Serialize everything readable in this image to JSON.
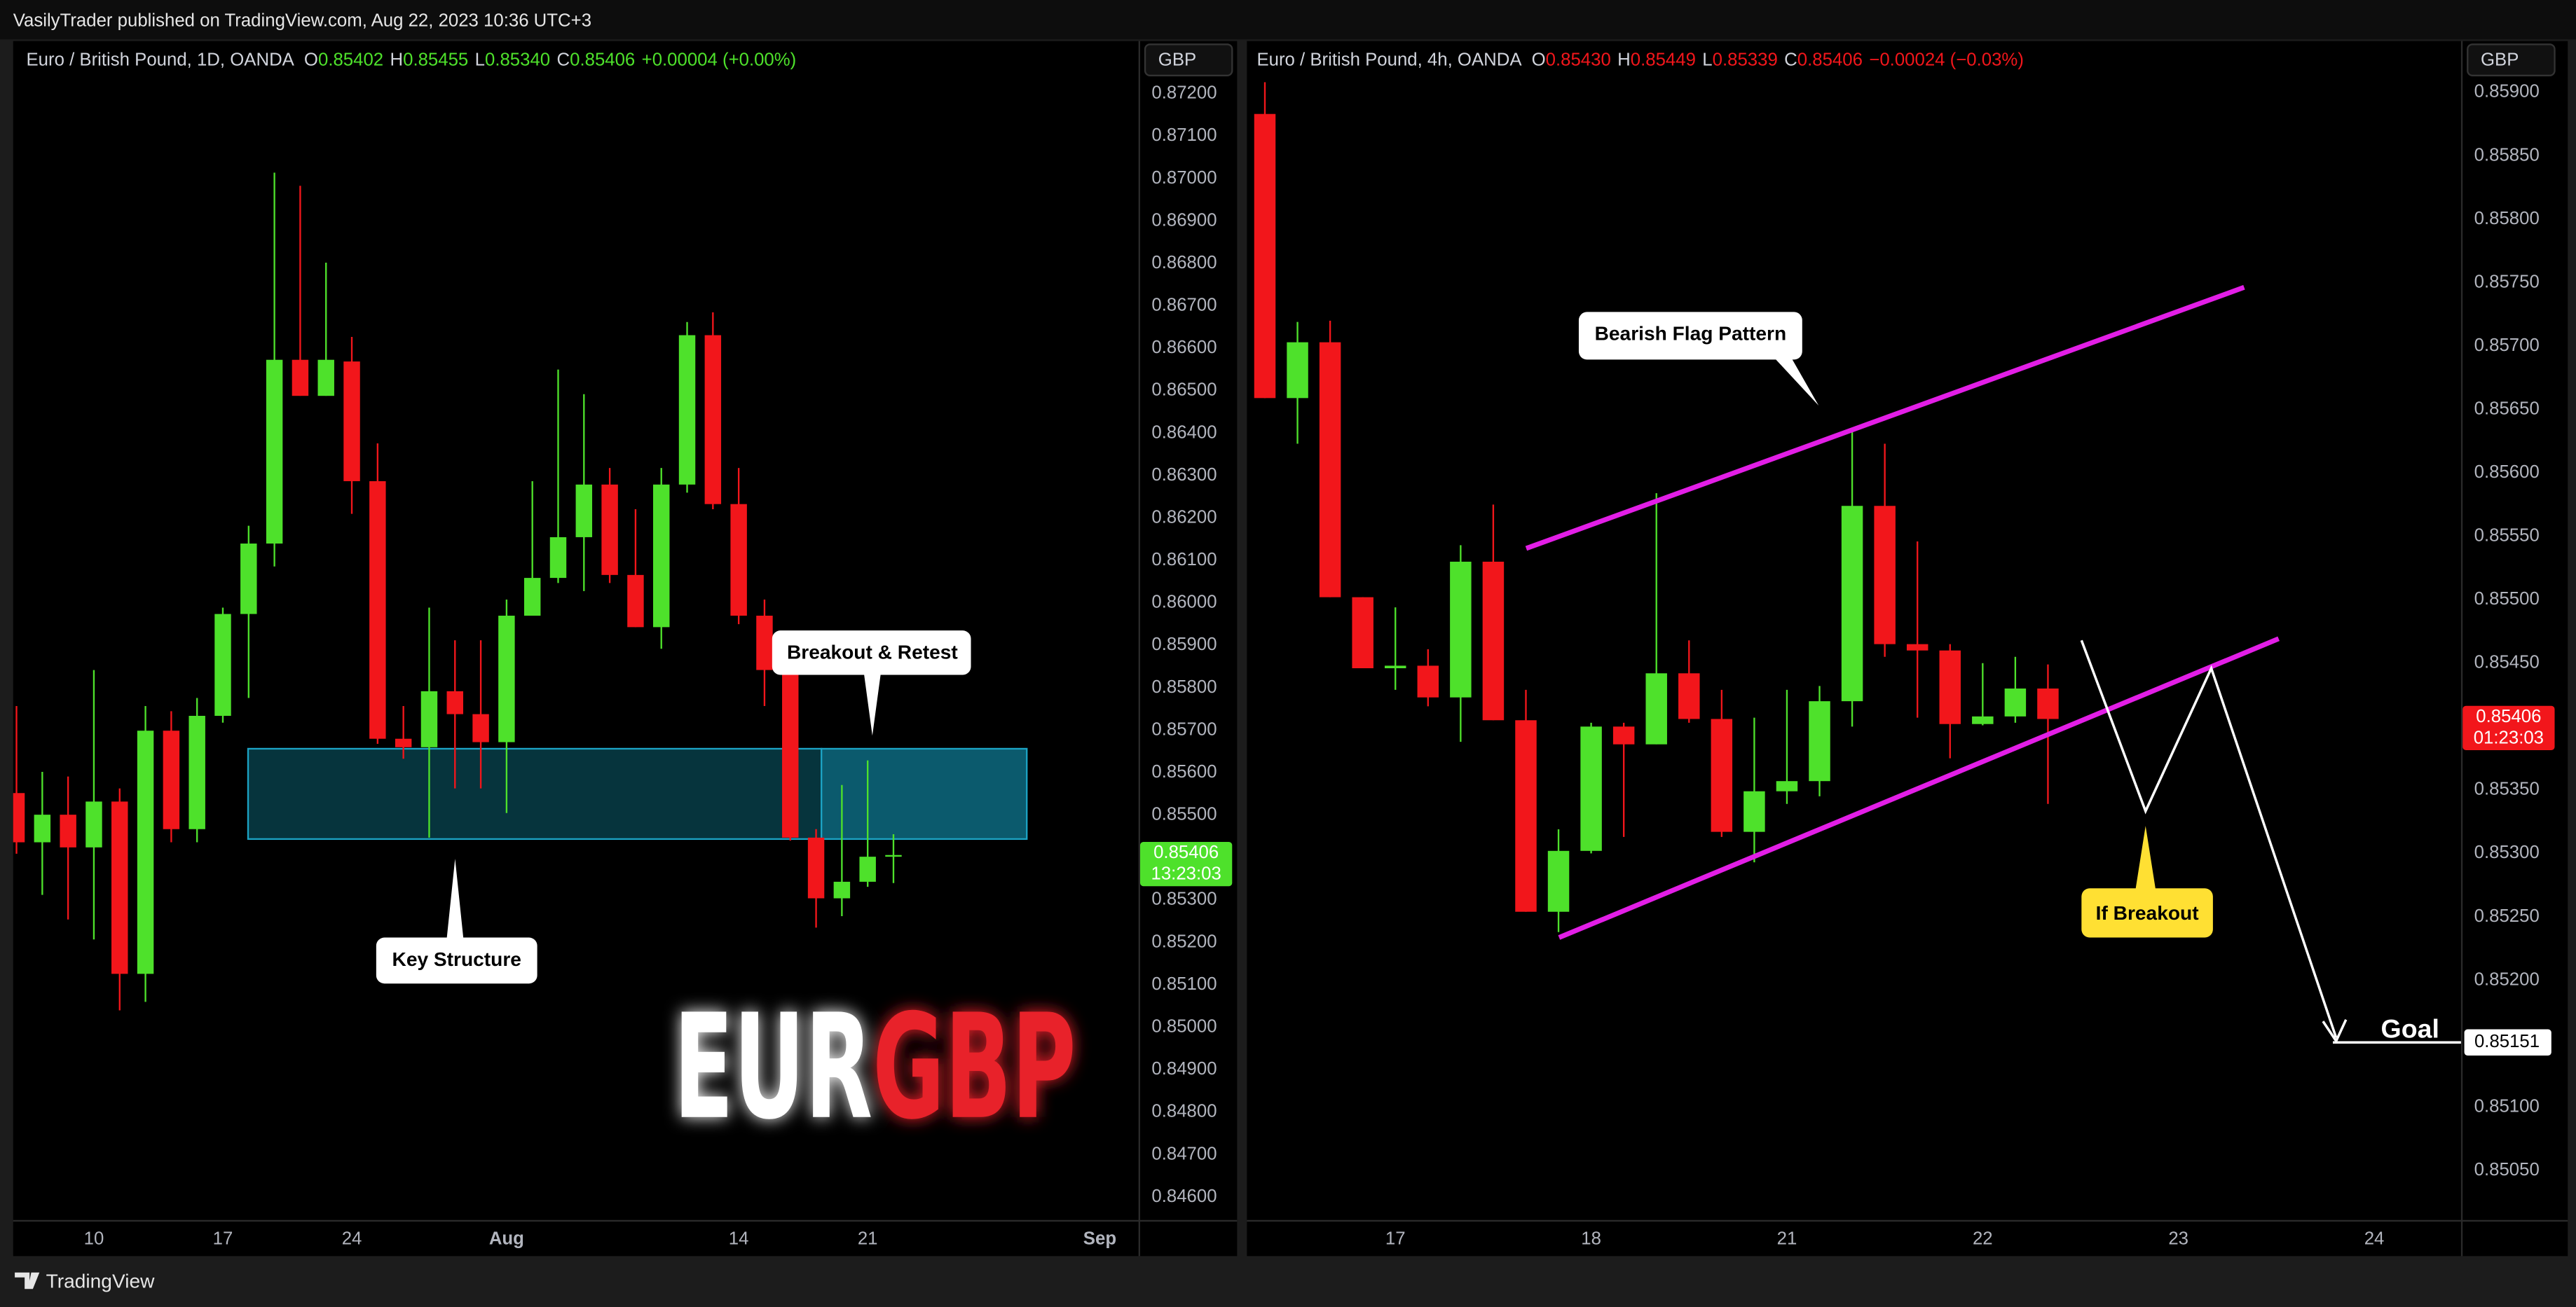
{
  "header": {
    "text": "VasilyTrader published on TradingView.com, Aug 22, 2023 10:36 UTC+3"
  },
  "footer": {
    "brand": "TradingView"
  },
  "chart_data": [
    {
      "type": "candlestick",
      "legend": {
        "symbol": "Euro / British Pound, 1D, OANDA",
        "fields": [
          [
            "O",
            "0.85402"
          ],
          [
            "H",
            "0.85455"
          ],
          [
            "L",
            "0.85340"
          ],
          [
            "C",
            "0.85406"
          ]
        ],
        "change": "+0.00004 (+0.00%)"
      },
      "currency": "GBP",
      "colors": {
        "up": "#4ee12b",
        "down": "#f2161b"
      },
      "open": [
        0.85552,
        0.85436,
        0.85501,
        0.85424,
        0.85532,
        0.85126,
        0.85699,
        0.85467,
        0.85734,
        0.85974,
        0.8614,
        0.86573,
        0.86488,
        0.86569,
        0.86287,
        0.8568,
        0.8566,
        0.85792,
        0.85738,
        0.85672,
        0.8597,
        0.86059,
        0.86155,
        0.86279,
        0.86066,
        0.85943,
        0.86279,
        0.86631,
        0.86233,
        0.8597,
        0.85842,
        0.85447,
        0.85304,
        0.85343,
        0.85402
      ],
      "high": [
        0.85757,
        0.85602,
        0.85591,
        0.85842,
        0.85563,
        0.85757,
        0.85745,
        0.85776,
        0.85989,
        0.86182,
        0.87014,
        0.86983,
        0.86802,
        0.86627,
        0.86376,
        0.85757,
        0.85989,
        0.85912,
        0.85912,
        0.86008,
        0.86287,
        0.8655,
        0.86492,
        0.86318,
        0.86221,
        0.86318,
        0.86662,
        0.86685,
        0.86318,
        0.86008,
        0.85892,
        0.85467,
        0.85571,
        0.85629,
        0.85455
      ],
      "low": [
        0.85409,
        0.85312,
        0.85254,
        0.85207,
        0.8504,
        0.8506,
        0.85436,
        0.85436,
        0.85718,
        0.85776,
        0.86086,
        0.86488,
        0.86488,
        0.8621,
        0.85668,
        0.85633,
        0.85447,
        0.85563,
        0.85563,
        0.85505,
        0.8597,
        0.86047,
        0.86028,
        0.86047,
        0.85943,
        0.85892,
        0.8626,
        0.86221,
        0.8595,
        0.85757,
        0.8544,
        0.85235,
        0.85262,
        0.85331,
        0.8534
      ],
      "close": [
        0.85436,
        0.85501,
        0.85424,
        0.85532,
        0.85126,
        0.85699,
        0.85467,
        0.85734,
        0.85974,
        0.8614,
        0.86573,
        0.86488,
        0.86573,
        0.86287,
        0.8568,
        0.8566,
        0.85792,
        0.85738,
        0.85672,
        0.8597,
        0.86059,
        0.86155,
        0.86279,
        0.86066,
        0.85943,
        0.86279,
        0.86631,
        0.86233,
        0.8597,
        0.85842,
        0.85447,
        0.85304,
        0.85343,
        0.85402,
        0.85406
      ],
      "xlim": [
        -0.13,
        43.5
      ],
      "xticks": [
        {
          "value": 3,
          "label": "10"
        },
        {
          "value": 8,
          "label": "17"
        },
        {
          "value": 13,
          "label": "24"
        },
        {
          "value": 19,
          "label": "Aug"
        },
        {
          "value": 28,
          "label": "14"
        },
        {
          "value": 33,
          "label": "21"
        },
        {
          "value": 42,
          "label": "Sep"
        }
      ],
      "ylim": [
        0.84546,
        0.87239
      ],
      "yticks": [
        {
          "value": 0.872,
          "label": "0.87200"
        },
        {
          "value": 0.871,
          "label": "0.87100"
        },
        {
          "value": 0.87,
          "label": "0.87000"
        },
        {
          "value": 0.869,
          "label": "0.86900"
        },
        {
          "value": 0.868,
          "label": "0.86800"
        },
        {
          "value": 0.867,
          "label": "0.86700"
        },
        {
          "value": 0.866,
          "label": "0.86600"
        },
        {
          "value": 0.865,
          "label": "0.86500"
        },
        {
          "value": 0.864,
          "label": "0.86400"
        },
        {
          "value": 0.863,
          "label": "0.86300"
        },
        {
          "value": 0.862,
          "label": "0.86200"
        },
        {
          "value": 0.861,
          "label": "0.86100"
        },
        {
          "value": 0.86,
          "label": "0.86000"
        },
        {
          "value": 0.859,
          "label": "0.85900"
        },
        {
          "value": 0.858,
          "label": "0.85800"
        },
        {
          "value": 0.857,
          "label": "0.85700"
        },
        {
          "value": 0.856,
          "label": "0.85600"
        },
        {
          "value": 0.855,
          "label": "0.85500"
        },
        {
          "value": 0.854,
          "label": "0.85400"
        },
        {
          "value": 0.853,
          "label": "0.85300"
        },
        {
          "value": 0.852,
          "label": "0.85200"
        },
        {
          "value": 0.851,
          "label": "0.85100"
        },
        {
          "value": 0.85,
          "label": "0.85000"
        },
        {
          "value": 0.849,
          "label": "0.84900"
        },
        {
          "value": 0.848,
          "label": "0.84800"
        },
        {
          "value": 0.847,
          "label": "0.84700"
        },
        {
          "value": 0.846,
          "label": "0.84600"
        }
      ],
      "grid": false,
      "last_price": {
        "value": 0.85406,
        "countdown": "13:23:03"
      },
      "annotations": {
        "retest": "Breakout & Retest",
        "structure": "Key Structure"
      },
      "watermark": [
        "EUR",
        "GBP"
      ]
    },
    {
      "type": "candlestick",
      "legend": {
        "symbol": "Euro / British Pound, 4h, OANDA",
        "fields": [
          [
            "O",
            "0.85430"
          ],
          [
            "H",
            "0.85449"
          ],
          [
            "L",
            "0.85339"
          ],
          [
            "C",
            "0.85406"
          ]
        ],
        "change": "−0.00024 (−0.03%)"
      },
      "currency": "GBP",
      "colors": {
        "up": "#4ee12b",
        "down": "#f2161b"
      },
      "open": [
        0.85883,
        0.85659,
        0.85703,
        0.85502,
        0.85446,
        0.85448,
        0.85423,
        0.8553,
        0.85405,
        0.85254,
        0.85302,
        0.854,
        0.85386,
        0.85442,
        0.85406,
        0.85317,
        0.85349,
        0.85357,
        0.8542,
        0.85574,
        0.85465,
        0.8546,
        0.85402,
        0.85408,
        0.8543
      ],
      "high": [
        0.85908,
        0.85719,
        0.8572,
        0.85502,
        0.85494,
        0.85461,
        0.85543,
        0.85575,
        0.85429,
        0.85319,
        0.85403,
        0.85403,
        0.85584,
        0.85468,
        0.85429,
        0.85407,
        0.85429,
        0.85432,
        0.85634,
        0.85623,
        0.85546,
        0.85465,
        0.8545,
        0.85455,
        0.85449
      ],
      "low": [
        0.85659,
        0.85623,
        0.85502,
        0.85446,
        0.85429,
        0.85416,
        0.85388,
        0.85405,
        0.85254,
        0.85238,
        0.853,
        0.85313,
        0.85386,
        0.85403,
        0.85313,
        0.85293,
        0.85339,
        0.85345,
        0.854,
        0.85455,
        0.85407,
        0.85375,
        0.85401,
        0.85403,
        0.85339
      ],
      "close": [
        0.85659,
        0.85703,
        0.85502,
        0.85446,
        0.85448,
        0.85423,
        0.8553,
        0.85405,
        0.85254,
        0.85302,
        0.854,
        0.85386,
        0.85442,
        0.85406,
        0.85317,
        0.85349,
        0.85357,
        0.8542,
        0.85574,
        0.85465,
        0.8546,
        0.85402,
        0.85408,
        0.8543,
        0.85406
      ],
      "xlim": [
        -0.55,
        36.66
      ],
      "xticks": [
        {
          "value": 4,
          "label": "17"
        },
        {
          "value": 10,
          "label": "18"
        },
        {
          "value": 16,
          "label": "21"
        },
        {
          "value": 22,
          "label": "22"
        },
        {
          "value": 28,
          "label": "23"
        },
        {
          "value": 34,
          "label": "24"
        }
      ],
      "ylim": [
        0.85011,
        0.85912
      ],
      "yticks": [
        {
          "value": 0.859,
          "label": "0.85900"
        },
        {
          "value": 0.8585,
          "label": "0.85850"
        },
        {
          "value": 0.858,
          "label": "0.85800"
        },
        {
          "value": 0.8575,
          "label": "0.85750"
        },
        {
          "value": 0.857,
          "label": "0.85700"
        },
        {
          "value": 0.8565,
          "label": "0.85650"
        },
        {
          "value": 0.856,
          "label": "0.85600"
        },
        {
          "value": 0.8555,
          "label": "0.85550"
        },
        {
          "value": 0.855,
          "label": "0.85500"
        },
        {
          "value": 0.8545,
          "label": "0.85450"
        },
        {
          "value": 0.854,
          "label": "0.85400"
        },
        {
          "value": 0.8535,
          "label": "0.85350"
        },
        {
          "value": 0.853,
          "label": "0.85300"
        },
        {
          "value": 0.8525,
          "label": "0.85250"
        },
        {
          "value": 0.852,
          "label": "0.85200"
        },
        {
          "value": 0.8515,
          "label": "0.85150"
        },
        {
          "value": 0.851,
          "label": "0.85100"
        },
        {
          "value": 0.8505,
          "label": "0.85050"
        }
      ],
      "grid": false,
      "last_price": {
        "value": 0.85406,
        "countdown": "01:23:03"
      },
      "annotations": {
        "flag": "Bearish Flag Pattern",
        "breakout": "If Breakout",
        "goal": {
          "label": "Goal",
          "value": 0.85151
        }
      }
    }
  ]
}
